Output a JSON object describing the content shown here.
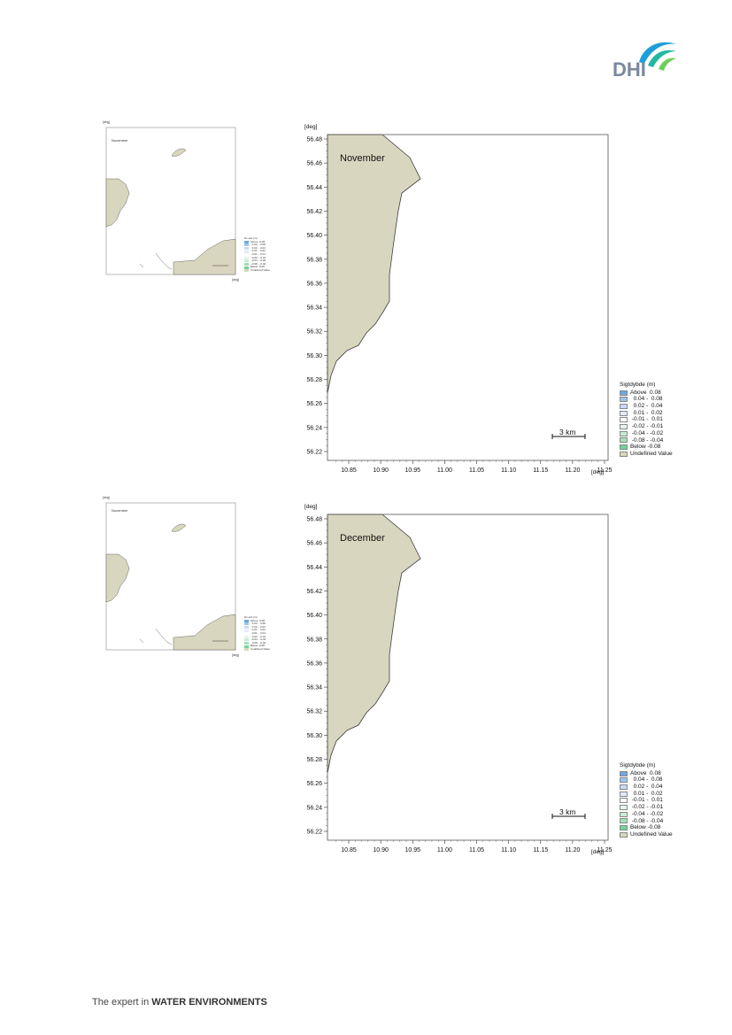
{
  "logo": {
    "text": "DHI"
  },
  "footer": {
    "prefix": "The expert in ",
    "strong": "WATER ENVIRONMENTS"
  },
  "axes": {
    "unit": "[deg]",
    "y_ticks": [
      "56.48",
      "56.46",
      "56.44",
      "56.42",
      "56.40",
      "56.38",
      "56.36",
      "56.34",
      "56.32",
      "56.30",
      "56.28",
      "56.26",
      "56.24",
      "56.22"
    ],
    "x_ticks": [
      "10.85",
      "10.90",
      "10.95",
      "11.00",
      "11.05",
      "11.10",
      "11.15",
      "11.20",
      "11.25"
    ]
  },
  "colors": {
    "land": "#d9d6bf",
    "land_stroke": "#3d3d3d",
    "frame": "#555555",
    "legend": [
      "#6fa8dc",
      "#9fc5e8",
      "#c9daf8",
      "#e3ecf8",
      "#ffffff",
      "#e6f5ec",
      "#c8ecd5",
      "#a4dfb9",
      "#6fd59a",
      "#d9d6bf"
    ]
  },
  "legend": {
    "title": "Sigtdybde (m)",
    "items": [
      "Above  0.08",
      "  0.04 -  0.08",
      "  0.02 -  0.04",
      "  0.01 -  0.02",
      " -0.01 -  0.01",
      " -0.02 - -0.01",
      " -0.04 - -0.02",
      " -0.08 - -0.04",
      "Below -0.08",
      "Undefined Value"
    ]
  },
  "panels": [
    {
      "month": "November",
      "scale_bar": "3 km",
      "overview": {
        "title": "November",
        "legend_title": "Dv elvt (m)"
      }
    },
    {
      "month": "December",
      "scale_bar": "3 km",
      "overview": {
        "title": "November",
        "legend_title": "Dv elvt (m)"
      }
    }
  ]
}
